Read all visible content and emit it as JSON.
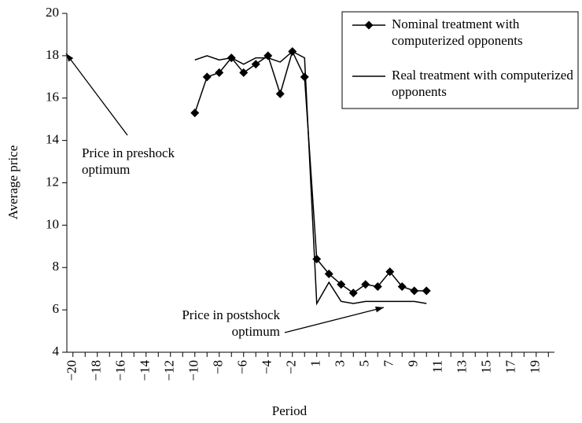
{
  "chart_data": {
    "type": "line",
    "xlabel": "Period",
    "ylabel": "Average price",
    "categories": [
      "−20",
      null,
      "−18",
      null,
      "−16",
      null,
      "−14",
      null,
      "−12",
      null,
      "−10",
      null,
      "−8",
      null,
      "−6",
      null,
      "−4",
      null,
      "−2",
      null,
      "1",
      null,
      "3",
      null,
      "5",
      null,
      "7",
      null,
      "9",
      null,
      "11",
      null,
      "13",
      null,
      "15",
      null,
      "17",
      null,
      "19",
      null
    ],
    "ylim": [
      4,
      20
    ],
    "yticks": [
      4,
      6,
      8,
      10,
      12,
      14,
      16,
      18,
      20
    ],
    "series": [
      {
        "name": "Nominal treatment with computerized opponents",
        "color": "#000000",
        "marker": "diamond",
        "values": [
          null,
          null,
          null,
          null,
          null,
          null,
          null,
          null,
          null,
          null,
          15.3,
          17.0,
          17.2,
          17.9,
          17.2,
          17.6,
          18.0,
          16.2,
          18.2,
          17.0,
          8.4,
          7.7,
          7.2,
          6.8,
          7.2,
          7.1,
          7.8,
          7.1,
          6.9,
          6.9,
          null,
          null,
          null,
          null,
          null,
          null,
          null,
          null,
          null,
          null
        ]
      },
      {
        "name": "Real treatment with computerized opponents",
        "color": "#000000",
        "marker": "none",
        "values": [
          null,
          null,
          null,
          null,
          null,
          null,
          null,
          null,
          null,
          null,
          17.8,
          18.0,
          17.8,
          17.9,
          17.6,
          17.9,
          17.9,
          17.7,
          18.2,
          17.9,
          6.3,
          7.3,
          6.4,
          6.3,
          6.4,
          6.4,
          6.4,
          6.4,
          6.4,
          6.3,
          null,
          null,
          null,
          null,
          null,
          null,
          null,
          null,
          null,
          null
        ]
      }
    ],
    "legend": "upper right",
    "annotations": [
      "Price in preshock optimum",
      "Price in postshock optimum"
    ]
  }
}
